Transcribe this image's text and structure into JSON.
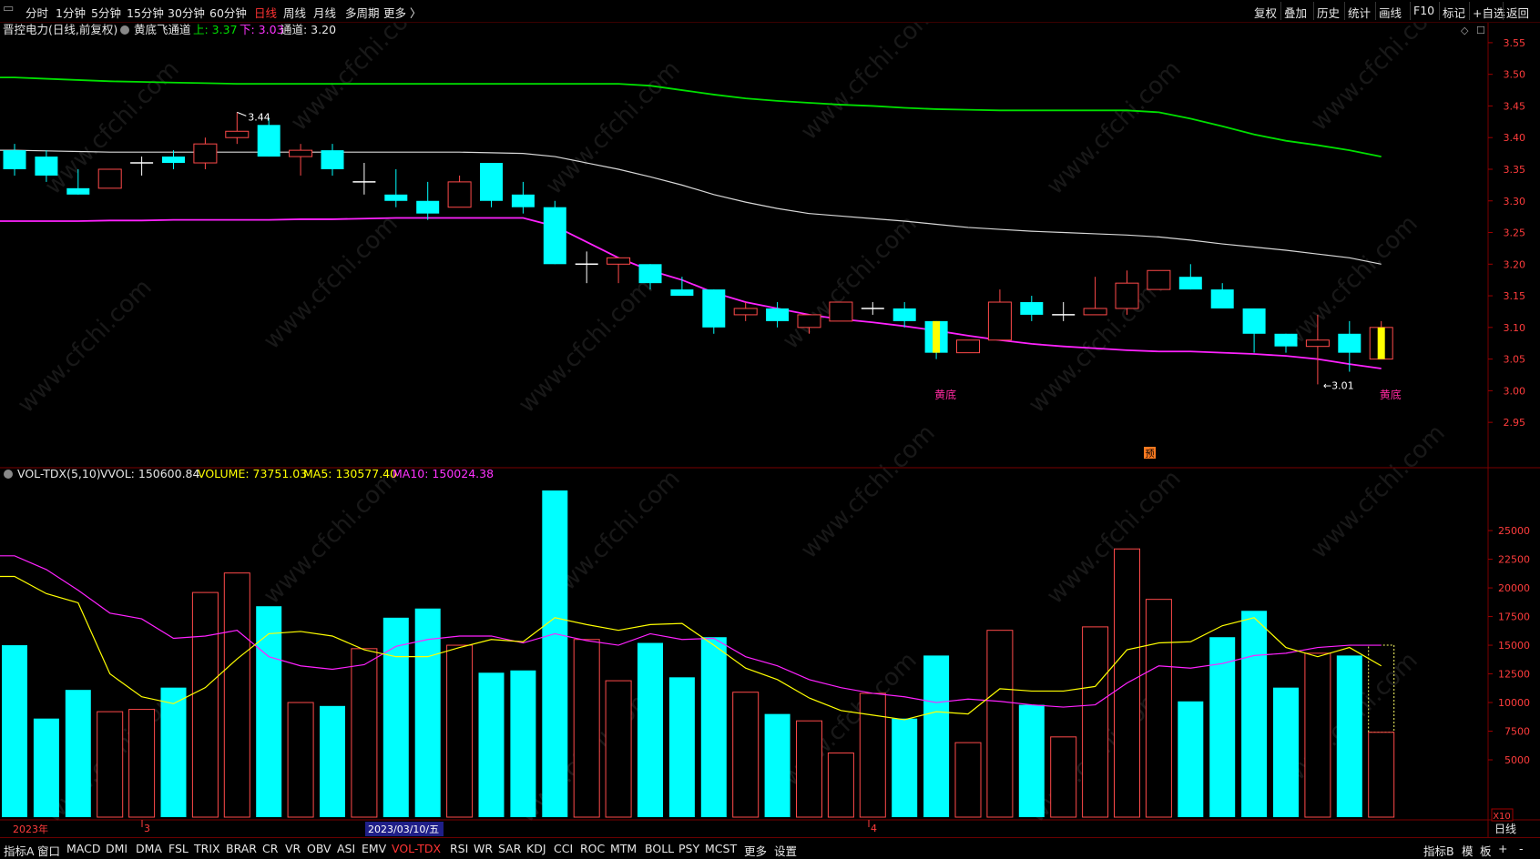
{
  "toolbar": {
    "left": [
      "分时",
      "1分钟",
      "5分钟",
      "15分钟",
      "30分钟",
      "60分钟",
      "日线",
      "周线",
      "月线",
      "多周期",
      "更多 〉"
    ],
    "active": "日线",
    "right": [
      "复权",
      "叠加",
      "历史",
      "统计",
      "画线",
      "F10",
      "标记",
      "+自选",
      "返回"
    ]
  },
  "price_panel": {
    "stock_title": "晋控电力(日线,前复权)",
    "indicator_name": "黄底飞通道",
    "upper_label": "上: 3.37",
    "lower_label": "下: 3.03",
    "channel_label": "通道: 3.20",
    "max_label": "3.44",
    "min_label": "←3.01",
    "signal_label": "黄底",
    "pre_tag": "预"
  },
  "volume_panel": {
    "indicator_name": "VOL-TDX(5,10)",
    "vvol_label": "VVOL: 150600.84",
    "volume_label": "VOLUME: 73751.03",
    "ma5_label": "MA5: 130577.40",
    "ma10_label": "MA10: 150024.38",
    "unit_label": "X10"
  },
  "date_axis": {
    "labels": [
      "2023年",
      "3",
      "2023/03/10/五",
      "4"
    ],
    "period_label": "日线"
  },
  "bottom_tabs": {
    "left": [
      "指标A",
      "窗口",
      "MACD",
      "DMI",
      "DMA",
      "FSL",
      "TRIX",
      "BRAR",
      "CR",
      "VR",
      "OBV",
      "ASI",
      "EMV",
      "VOL-TDX",
      "RSI",
      "WR",
      "SAR",
      "KDJ",
      "CCI",
      "ROC",
      "MTM",
      "BOLL",
      "PSY",
      "MCST",
      "更多",
      "设置"
    ],
    "active": "VOL-TDX",
    "right": [
      "指标B",
      "模",
      "板",
      "+",
      "-"
    ]
  },
  "watermark": "www.cfchi.com",
  "colors": {
    "up": "#ff4a4a",
    "down": "#00ffff",
    "upper_line": "#00e000",
    "mid_line": "#d8d8d8",
    "lower_line": "#ff22ff",
    "signal": "#ffff00",
    "ma5": "#ffff00",
    "ma10": "#ff22ff"
  },
  "chart_data": [
    {
      "type": "candlestick",
      "title": "晋控电力(日线,前复权)",
      "ylim": [
        2.92,
        3.57
      ],
      "y_ticks": [
        3.55,
        3.5,
        3.45,
        3.4,
        3.35,
        3.3,
        3.25,
        3.2,
        3.15,
        3.1,
        3.05,
        3.0,
        2.95
      ],
      "candles": [
        {
          "open": 3.38,
          "high": 3.39,
          "low": 3.34,
          "close": 3.35
        },
        {
          "open": 3.37,
          "high": 3.38,
          "low": 3.33,
          "close": 3.34
        },
        {
          "open": 3.32,
          "high": 3.35,
          "low": 3.31,
          "close": 3.31
        },
        {
          "open": 3.32,
          "high": 3.35,
          "low": 3.32,
          "close": 3.35
        },
        {
          "open": 3.36,
          "high": 3.37,
          "low": 3.34,
          "close": 3.36
        },
        {
          "open": 3.37,
          "high": 3.38,
          "low": 3.35,
          "close": 3.36
        },
        {
          "open": 3.36,
          "high": 3.4,
          "low": 3.35,
          "close": 3.39
        },
        {
          "open": 3.4,
          "high": 3.44,
          "low": 3.39,
          "close": 3.41
        },
        {
          "open": 3.42,
          "high": 3.43,
          "low": 3.37,
          "close": 3.37
        },
        {
          "open": 3.37,
          "high": 3.39,
          "low": 3.34,
          "close": 3.38
        },
        {
          "open": 3.38,
          "high": 3.39,
          "low": 3.34,
          "close": 3.35
        },
        {
          "open": 3.33,
          "high": 3.36,
          "low": 3.31,
          "close": 3.33
        },
        {
          "open": 3.31,
          "high": 3.35,
          "low": 3.29,
          "close": 3.3
        },
        {
          "open": 3.3,
          "high": 3.33,
          "low": 3.27,
          "close": 3.28
        },
        {
          "open": 3.29,
          "high": 3.34,
          "low": 3.29,
          "close": 3.33
        },
        {
          "open": 3.36,
          "high": 3.36,
          "low": 3.29,
          "close": 3.3
        },
        {
          "open": 3.31,
          "high": 3.33,
          "low": 3.28,
          "close": 3.29
        },
        {
          "open": 3.29,
          "high": 3.3,
          "low": 3.2,
          "close": 3.2
        },
        {
          "open": 3.2,
          "high": 3.22,
          "low": 3.17,
          "close": 3.2
        },
        {
          "open": 3.2,
          "high": 3.21,
          "low": 3.17,
          "close": 3.21
        },
        {
          "open": 3.2,
          "high": 3.2,
          "low": 3.16,
          "close": 3.17
        },
        {
          "open": 3.16,
          "high": 3.18,
          "low": 3.15,
          "close": 3.15
        },
        {
          "open": 3.16,
          "high": 3.16,
          "low": 3.09,
          "close": 3.1
        },
        {
          "open": 3.12,
          "high": 3.14,
          "low": 3.11,
          "close": 3.13
        },
        {
          "open": 3.13,
          "high": 3.14,
          "low": 3.1,
          "close": 3.11
        },
        {
          "open": 3.1,
          "high": 3.12,
          "low": 3.09,
          "close": 3.12
        },
        {
          "open": 3.11,
          "high": 3.14,
          "low": 3.11,
          "close": 3.14
        },
        {
          "open": 3.13,
          "high": 3.14,
          "low": 3.12,
          "close": 3.13
        },
        {
          "open": 3.13,
          "high": 3.14,
          "low": 3.1,
          "close": 3.11
        },
        {
          "open": 3.11,
          "high": 3.11,
          "low": 3.05,
          "close": 3.06
        },
        {
          "open": 3.06,
          "high": 3.08,
          "low": 3.06,
          "close": 3.08
        },
        {
          "open": 3.08,
          "high": 3.16,
          "low": 3.08,
          "close": 3.14
        },
        {
          "open": 3.14,
          "high": 3.15,
          "low": 3.11,
          "close": 3.12
        },
        {
          "open": 3.12,
          "high": 3.14,
          "low": 3.11,
          "close": 3.12
        },
        {
          "open": 3.12,
          "high": 3.18,
          "low": 3.12,
          "close": 3.13
        },
        {
          "open": 3.13,
          "high": 3.19,
          "low": 3.12,
          "close": 3.17
        },
        {
          "open": 3.16,
          "high": 3.19,
          "low": 3.16,
          "close": 3.19
        },
        {
          "open": 3.18,
          "high": 3.2,
          "low": 3.16,
          "close": 3.16
        },
        {
          "open": 3.16,
          "high": 3.17,
          "low": 3.13,
          "close": 3.13
        },
        {
          "open": 3.13,
          "high": 3.13,
          "low": 3.06,
          "close": 3.09
        },
        {
          "open": 3.09,
          "high": 3.09,
          "low": 3.06,
          "close": 3.07
        },
        {
          "open": 3.07,
          "high": 3.12,
          "low": 3.01,
          "close": 3.08
        },
        {
          "open": 3.09,
          "high": 3.11,
          "low": 3.03,
          "close": 3.06
        },
        {
          "open": 3.05,
          "high": 3.11,
          "low": 3.05,
          "close": 3.1
        }
      ],
      "signals_at": [
        29,
        43
      ],
      "upper_channel": [
        3.495,
        3.493,
        3.491,
        3.489,
        3.488,
        3.487,
        3.486,
        3.485,
        3.485,
        3.485,
        3.485,
        3.485,
        3.485,
        3.485,
        3.485,
        3.485,
        3.485,
        3.485,
        3.485,
        3.485,
        3.482,
        3.475,
        3.468,
        3.462,
        3.458,
        3.455,
        3.452,
        3.45,
        3.447,
        3.445,
        3.444,
        3.443,
        3.443,
        3.443,
        3.443,
        3.443,
        3.44,
        3.43,
        3.418,
        3.405,
        3.395,
        3.388,
        3.38,
        3.37
      ],
      "mid_channel": [
        3.38,
        3.379,
        3.378,
        3.377,
        3.377,
        3.377,
        3.377,
        3.377,
        3.377,
        3.377,
        3.377,
        3.377,
        3.377,
        3.377,
        3.377,
        3.376,
        3.375,
        3.37,
        3.36,
        3.35,
        3.338,
        3.325,
        3.31,
        3.298,
        3.288,
        3.28,
        3.276,
        3.272,
        3.268,
        3.263,
        3.258,
        3.255,
        3.252,
        3.25,
        3.248,
        3.246,
        3.243,
        3.238,
        3.232,
        3.227,
        3.222,
        3.216,
        3.21,
        3.2
      ],
      "lower_channel": [
        3.268,
        3.268,
        3.268,
        3.269,
        3.269,
        3.27,
        3.27,
        3.27,
        3.27,
        3.271,
        3.271,
        3.272,
        3.273,
        3.273,
        3.273,
        3.273,
        3.273,
        3.26,
        3.235,
        3.21,
        3.19,
        3.175,
        3.155,
        3.14,
        3.13,
        3.12,
        3.113,
        3.108,
        3.102,
        3.095,
        3.087,
        3.08,
        3.074,
        3.07,
        3.067,
        3.064,
        3.062,
        3.062,
        3.06,
        3.058,
        3.055,
        3.05,
        3.042,
        3.035
      ]
    },
    {
      "type": "bar",
      "title": "VOL-TDX(5,10)",
      "unit": "X10",
      "ylim": [
        0,
        28500
      ],
      "y_ticks": [
        5000,
        7500,
        10000,
        12500,
        15000,
        17500,
        20000,
        22500,
        25000
      ],
      "values": [
        15000,
        8600,
        11100,
        9200,
        9400,
        11300,
        19600,
        21300,
        18400,
        10000,
        9700,
        14700,
        17400,
        18200,
        15000,
        12600,
        12800,
        28500,
        15500,
        11900,
        15200,
        12200,
        15700,
        10900,
        9000,
        8400,
        5600,
        10800,
        8600,
        14100,
        6500,
        16300,
        9800,
        7000,
        16600,
        23400,
        19000,
        10100,
        15700,
        18000,
        11300,
        14300,
        14100,
        7400
      ],
      "ma5": [
        21000,
        19500,
        18700,
        12500,
        10500,
        9900,
        11300,
        13800,
        16000,
        16200,
        15800,
        14600,
        14000,
        14000,
        14800,
        15500,
        15300,
        17400,
        16800,
        16300,
        16800,
        16900,
        15000,
        13000,
        12000,
        10400,
        9300,
        8900,
        8500,
        9200,
        9000,
        11200,
        11000,
        11000,
        11400,
        14600,
        15200,
        15300,
        16700,
        17400,
        14800,
        14000,
        14800,
        13200
      ],
      "ma10": [
        22800,
        21600,
        19800,
        17800,
        17300,
        15600,
        15800,
        16300,
        14000,
        13200,
        12900,
        13300,
        14900,
        15500,
        15800,
        15800,
        15200,
        16000,
        15400,
        15000,
        16000,
        15500,
        15600,
        14000,
        13200,
        12000,
        11300,
        10800,
        10500,
        10000,
        10300,
        10100,
        9800,
        9600,
        9800,
        11700,
        13200,
        13000,
        13400,
        14100,
        14300,
        14800,
        15000,
        15000
      ]
    }
  ]
}
